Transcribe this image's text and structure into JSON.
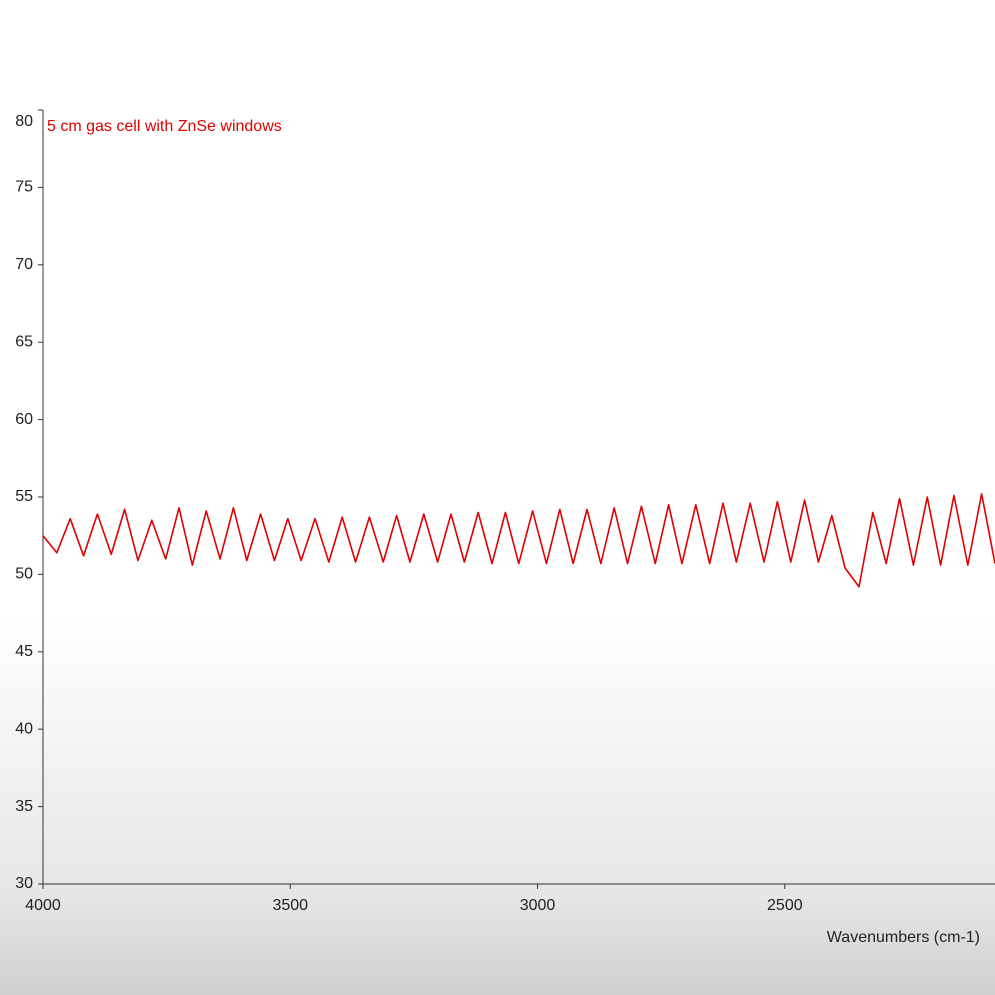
{
  "chart_data": {
    "type": "line",
    "annotation": "5 cm gas cell with ZnSe windows",
    "x_label": "Wavenumbers (cm-1)",
    "xlim": [
      4000,
      2075
    ],
    "ylim": [
      30,
      80
    ],
    "xticks": [
      4000,
      3500,
      3000,
      2500
    ],
    "yticks": [
      30,
      35,
      40,
      45,
      50,
      55,
      60,
      65,
      70,
      75,
      80
    ],
    "x": [
      4000,
      3972,
      3945,
      3918,
      3890,
      3862,
      3835,
      3808,
      3780,
      3752,
      3725,
      3698,
      3670,
      3642,
      3615,
      3588,
      3560,
      3532,
      3505,
      3478,
      3450,
      3422,
      3395,
      3368,
      3340,
      3312,
      3285,
      3258,
      3230,
      3202,
      3175,
      3148,
      3120,
      3092,
      3065,
      3038,
      3010,
      2982,
      2955,
      2928,
      2900,
      2872,
      2845,
      2818,
      2790,
      2762,
      2735,
      2708,
      2680,
      2652,
      2625,
      2598,
      2570,
      2542,
      2515,
      2488,
      2460,
      2432,
      2405,
      2378,
      2350,
      2322,
      2295,
      2268,
      2240,
      2212,
      2185,
      2158,
      2130,
      2102,
      2075
    ],
    "series": [
      {
        "color": "#e00000",
        "values": [
          52.5,
          51.4,
          53.6,
          51.2,
          53.9,
          51.3,
          54.2,
          50.9,
          53.5,
          51.0,
          54.3,
          50.6,
          54.1,
          51.0,
          54.3,
          50.9,
          53.9,
          50.9,
          53.6,
          50.9,
          53.6,
          50.8,
          53.7,
          50.8,
          53.7,
          50.8,
          53.8,
          50.8,
          53.9,
          50.8,
          53.9,
          50.8,
          54.0,
          50.7,
          54.0,
          50.7,
          54.1,
          50.7,
          54.2,
          50.7,
          54.2,
          50.7,
          54.3,
          50.7,
          54.4,
          50.7,
          54.5,
          50.7,
          54.5,
          50.7,
          54.6,
          50.8,
          54.6,
          50.8,
          54.7,
          50.8,
          54.8,
          50.8,
          53.8,
          50.4,
          49.2,
          54.0,
          50.7,
          54.9,
          50.6,
          55.0,
          50.6,
          55.1,
          50.6,
          55.2,
          50.7
        ]
      }
    ]
  }
}
